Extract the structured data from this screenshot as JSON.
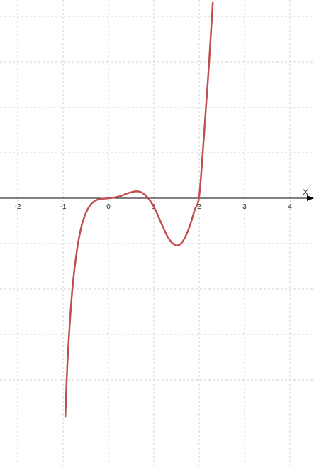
{
  "chart_data": {
    "type": "line",
    "title": "",
    "xlabel": "X",
    "ylabel": "",
    "xlim": [
      -2.4,
      4.5
    ],
    "ylim": [
      -4.8,
      4.3
    ],
    "grid": true,
    "x_ticks": [
      -2,
      -1,
      0,
      1,
      2,
      3,
      4
    ],
    "x_tick_labels": [
      "-2",
      "-1",
      "0",
      "1",
      "2",
      "3",
      "4"
    ],
    "series": [
      {
        "color": "#c0504d",
        "x": [
          -0.95,
          -0.9,
          -0.8,
          -0.7,
          -0.6,
          -0.5,
          -0.4,
          -0.3,
          -0.2,
          -0.1,
          0.0,
          0.1,
          0.2,
          0.3,
          0.4,
          0.5,
          0.6,
          0.7,
          0.8,
          0.9,
          1.0,
          1.1,
          1.2,
          1.3,
          1.4,
          1.5,
          1.6,
          1.7,
          1.8,
          1.9,
          2.0,
          2.1,
          2.2,
          2.3
        ],
        "y": [
          -4.8,
          -3.55,
          -2.05,
          -1.18,
          -0.64,
          -0.33,
          -0.15,
          -0.06,
          -0.02,
          -0.01,
          0.0,
          0.01,
          0.03,
          0.06,
          0.1,
          0.13,
          0.15,
          0.14,
          0.08,
          -0.03,
          -0.19,
          -0.4,
          -0.63,
          -0.84,
          -0.98,
          -1.04,
          -1.0,
          -0.84,
          -0.59,
          -0.26,
          0.05,
          1.3,
          2.7,
          4.3
        ]
      }
    ]
  }
}
